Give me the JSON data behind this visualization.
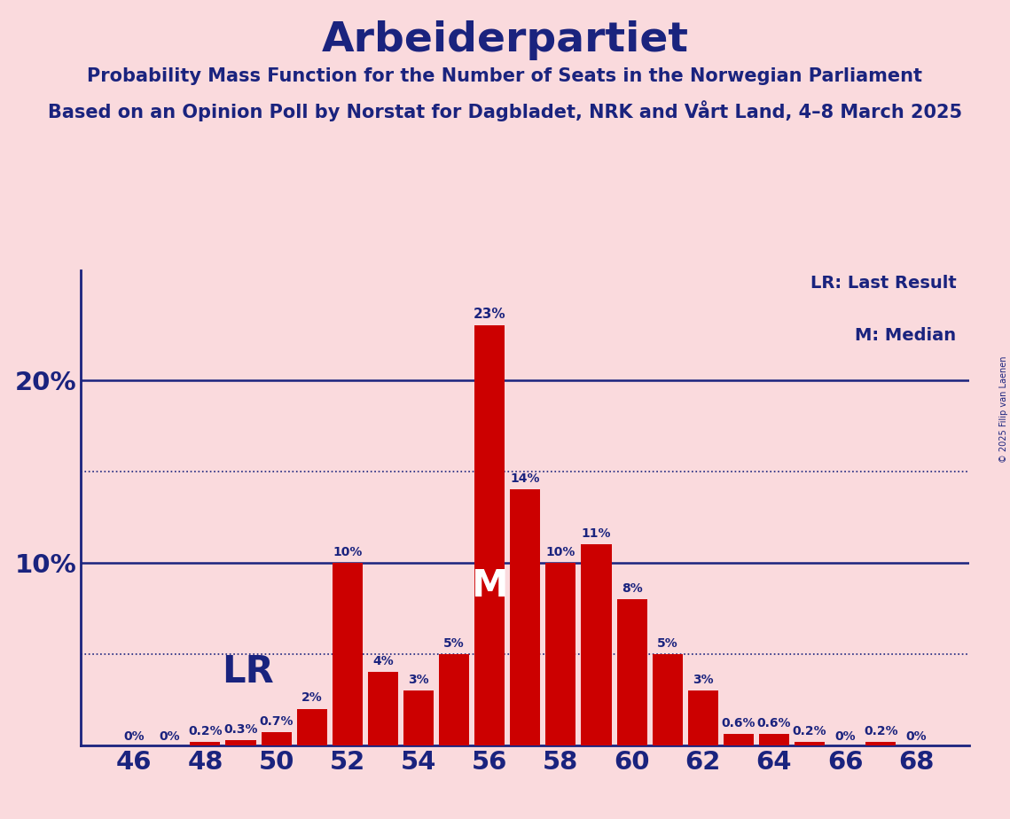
{
  "title": "Arbeiderpartiet",
  "subtitle1": "Probability Mass Function for the Number of Seats in the Norwegian Parliament",
  "subtitle2": "Based on an Opinion Poll by Norstat for Dagbladet, NRK and Vårt Land, 4–8 March 2025",
  "copyright": "© 2025 Filip van Laenen",
  "background_color": "#FADADD",
  "bar_color": "#CC0000",
  "title_color": "#1a237e",
  "seats": [
    46,
    47,
    48,
    49,
    50,
    51,
    52,
    53,
    54,
    55,
    56,
    57,
    58,
    59,
    60,
    61,
    62,
    63,
    64,
    65,
    66,
    67,
    68
  ],
  "probs": [
    0.0,
    0.0,
    0.2,
    0.3,
    0.7,
    2.0,
    10.0,
    4.0,
    3.0,
    5.0,
    23.0,
    14.0,
    10.0,
    11.0,
    8.0,
    5.0,
    3.0,
    0.6,
    0.6,
    0.2,
    0.0,
    0.2,
    0.0
  ],
  "labels": [
    "0%",
    "0%",
    "0.2%",
    "0.3%",
    "0.7%",
    "2%",
    "10%",
    "4%",
    "3%",
    "5%",
    "23%",
    "14%",
    "10%",
    "11%",
    "8%",
    "5%",
    "3%",
    "0.6%",
    "0.6%",
    "0.2%",
    "0%",
    "0.2%",
    "0%"
  ],
  "median_seat": 56,
  "lr_seat": 48,
  "xtick_seats": [
    46,
    48,
    50,
    52,
    54,
    56,
    58,
    60,
    62,
    64,
    66,
    68
  ],
  "yticks": [
    10,
    20
  ],
  "ylim": [
    0,
    26
  ],
  "solid_hlines": [
    10.0,
    20.0
  ],
  "dotted_hlines": [
    5.0,
    15.0
  ],
  "lr_label": "LR",
  "median_label": "M",
  "bar_width": 0.85,
  "xlim": [
    44.5,
    69.5
  ]
}
